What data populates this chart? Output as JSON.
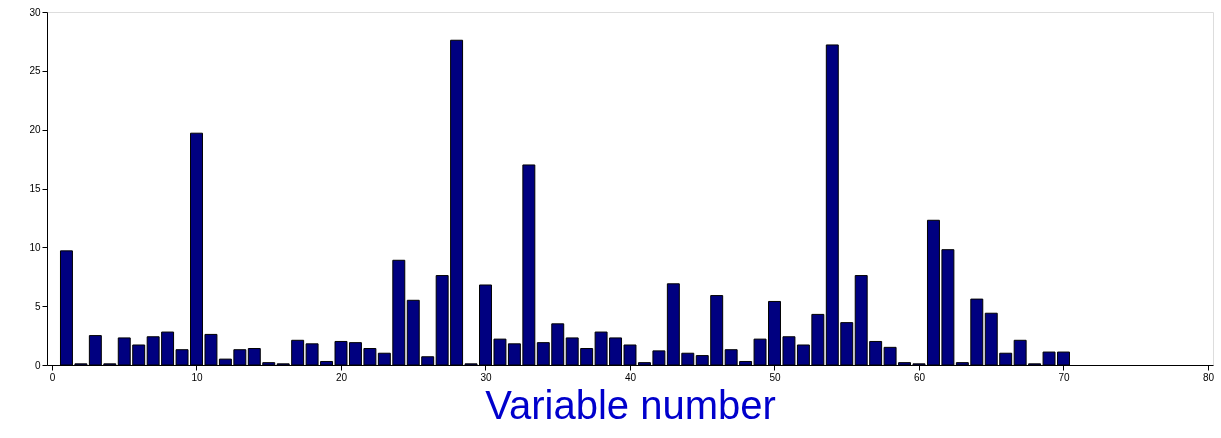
{
  "chart_data": {
    "type": "bar",
    "xlabel": "Variable number",
    "x": [
      1,
      2,
      3,
      4,
      5,
      6,
      7,
      8,
      9,
      10,
      11,
      12,
      13,
      14,
      15,
      16,
      17,
      18,
      19,
      20,
      21,
      22,
      23,
      24,
      25,
      26,
      27,
      28,
      29,
      30,
      31,
      32,
      33,
      34,
      35,
      36,
      37,
      38,
      39,
      40,
      41,
      42,
      43,
      44,
      45,
      46,
      47,
      48,
      49,
      50,
      51,
      52,
      53,
      54,
      55,
      56,
      57,
      58,
      59,
      60,
      61,
      62,
      63,
      64,
      65,
      66,
      67,
      68,
      69,
      70
    ],
    "values": [
      9.7,
      0.1,
      2.5,
      0.1,
      2.3,
      1.7,
      2.4,
      2.8,
      1.3,
      19.7,
      2.6,
      0.5,
      1.3,
      1.4,
      0.2,
      0.1,
      2.1,
      1.8,
      0.3,
      2.0,
      1.9,
      1.4,
      1.0,
      8.9,
      5.5,
      0.7,
      7.6,
      27.6,
      0.1,
      6.8,
      2.2,
      1.8,
      17.0,
      1.9,
      3.5,
      2.3,
      1.4,
      2.8,
      2.3,
      1.7,
      0.2,
      1.2,
      6.9,
      1.0,
      0.8,
      5.9,
      1.3,
      0.3,
      2.2,
      5.4,
      2.4,
      1.7,
      4.3,
      27.2,
      3.6,
      7.6,
      2.0,
      1.5,
      0.2,
      0.1,
      12.3,
      9.8,
      0.2,
      5.6,
      4.4,
      1.0,
      2.1,
      0.1,
      1.1,
      1.1
    ],
    "color": "#000080",
    "xlim": [
      0,
      80
    ],
    "xticks": [
      0,
      10,
      20,
      30,
      40,
      50,
      60,
      70,
      80
    ],
    "ylim": [
      0,
      30
    ],
    "yticks": [
      0,
      5,
      10,
      15,
      20,
      25,
      30
    ],
    "grid": false
  }
}
